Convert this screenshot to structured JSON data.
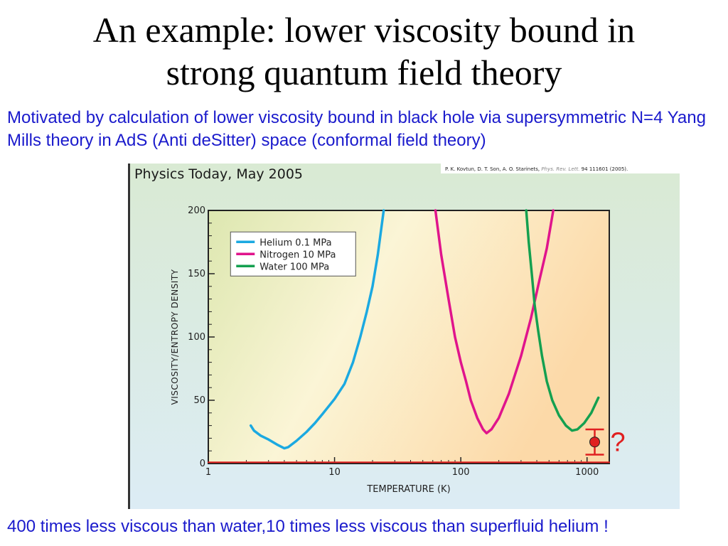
{
  "slide": {
    "title_line1": "An example: lower viscosity bound in",
    "title_line2": "strong quantum field theory",
    "intro": "Motivated by calculation of lower viscosity bound in black hole via supersymmetric N=4 Yang Mills theory in AdS (Anti deSitter) space (conformal field theory)",
    "footer": "400 times less viscous than water,10 times less viscous than superfluid helium !"
  },
  "figure": {
    "source_label": "Physics Today, May  2005",
    "citation_authors": "P. K. Kovtun, D. T. Son, A. O. Starinets,",
    "citation_journal": "Phys. Rev. Lett.",
    "citation_volume": "94",
    "citation_page": "111601 (2005).",
    "question_mark": "?"
  },
  "colors": {
    "text_blue": "#1a1acc",
    "helium": "#1ba9e1",
    "nitrogen": "#e0148c",
    "water": "#14a050",
    "bound": "#e02020"
  },
  "chart_data": {
    "type": "line",
    "xlabel": "TEMPERATURE (K)",
    "ylabel": "VISCOSITY/ENTROPY DENSITY",
    "xscale": "log",
    "xlim": [
      1,
      1500
    ],
    "ylim": [
      0,
      200
    ],
    "x_ticks": [
      1,
      10,
      100,
      1000
    ],
    "x_tick_labels": [
      "1",
      "10",
      "100",
      "1000"
    ],
    "y_ticks": [
      0,
      50,
      100,
      150,
      200
    ],
    "y_tick_labels": [
      "0",
      "50",
      "100",
      "150",
      "200"
    ],
    "grid": false,
    "legend_position": "top-left",
    "series": [
      {
        "name": "Helium 0.1 MPa",
        "color": "#1ba9e1",
        "points": [
          [
            2.17,
            30
          ],
          [
            2.3,
            26
          ],
          [
            2.6,
            22
          ],
          [
            3.0,
            19
          ],
          [
            3.5,
            15
          ],
          [
            4.0,
            12
          ],
          [
            4.3,
            13
          ],
          [
            5,
            18
          ],
          [
            6,
            25
          ],
          [
            7,
            32
          ],
          [
            8,
            39
          ],
          [
            10,
            51
          ],
          [
            12,
            63
          ],
          [
            14,
            80
          ],
          [
            16,
            100
          ],
          [
            18,
            120
          ],
          [
            20,
            140
          ],
          [
            22,
            165
          ],
          [
            24.5,
            200
          ]
        ]
      },
      {
        "name": "Nitrogen 10 MPa",
        "color": "#e0148c",
        "points": [
          [
            63,
            200
          ],
          [
            70,
            165
          ],
          [
            80,
            130
          ],
          [
            90,
            100
          ],
          [
            100,
            80
          ],
          [
            110,
            65
          ],
          [
            120,
            50
          ],
          [
            135,
            36
          ],
          [
            150,
            27
          ],
          [
            160,
            24
          ],
          [
            175,
            27
          ],
          [
            200,
            36
          ],
          [
            240,
            55
          ],
          [
            300,
            85
          ],
          [
            360,
            115
          ],
          [
            420,
            145
          ],
          [
            480,
            170
          ],
          [
            540,
            200
          ]
        ]
      },
      {
        "name": "Water 100 MPa",
        "color": "#14a050",
        "points": [
          [
            330,
            200
          ],
          [
            345,
            175
          ],
          [
            365,
            150
          ],
          [
            385,
            125
          ],
          [
            410,
            105
          ],
          [
            440,
            85
          ],
          [
            480,
            65
          ],
          [
            530,
            50
          ],
          [
            600,
            38
          ],
          [
            680,
            30
          ],
          [
            760,
            26
          ],
          [
            840,
            27
          ],
          [
            950,
            32
          ],
          [
            1080,
            40
          ],
          [
            1230,
            52
          ]
        ]
      },
      {
        "name": "lower bound",
        "color": "#e02020",
        "points": [
          [
            1,
            1
          ],
          [
            1500,
            1
          ]
        ]
      }
    ],
    "annotations": [
      {
        "label": "?",
        "x": 1150,
        "y": 17,
        "y_error": [
          7,
          27
        ]
      }
    ]
  }
}
